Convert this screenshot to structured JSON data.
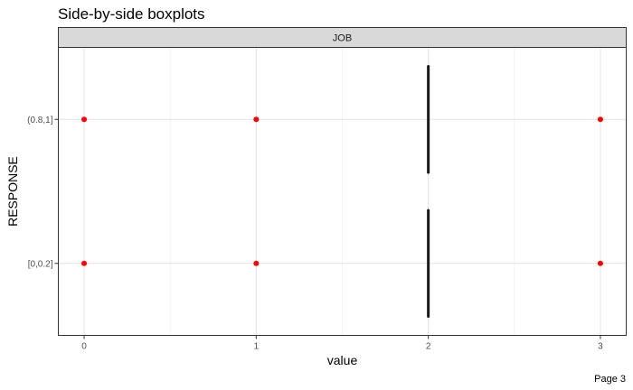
{
  "chart_data": {
    "type": "boxplot",
    "title": "Side-by-side boxplots",
    "facet_label": "JOB",
    "xlabel": "value",
    "ylabel": "RESPONSE",
    "x_ticks": [
      "0",
      "1",
      "2",
      "3"
    ],
    "x_tick_values": [
      0,
      1,
      2,
      3
    ],
    "xlim": [
      -0.15,
      3.15
    ],
    "categories": [
      "(0.8,1]",
      "[0,0.2]"
    ],
    "boxes": [
      {
        "category": "(0.8,1]",
        "q1": 2,
        "median": 2,
        "q3": 2,
        "whisker_low": 2,
        "whisker_high": 2,
        "outliers": [
          0,
          1,
          3
        ]
      },
      {
        "category": "[0,0.2]",
        "q1": 2,
        "median": 2,
        "q3": 2,
        "whisker_low": 2,
        "whisker_high": 2,
        "outliers": [
          0,
          1,
          3
        ]
      }
    ],
    "grid": true,
    "outlier_color": "#ff0000",
    "box_color": "#000000"
  },
  "page_label": "Page 3"
}
